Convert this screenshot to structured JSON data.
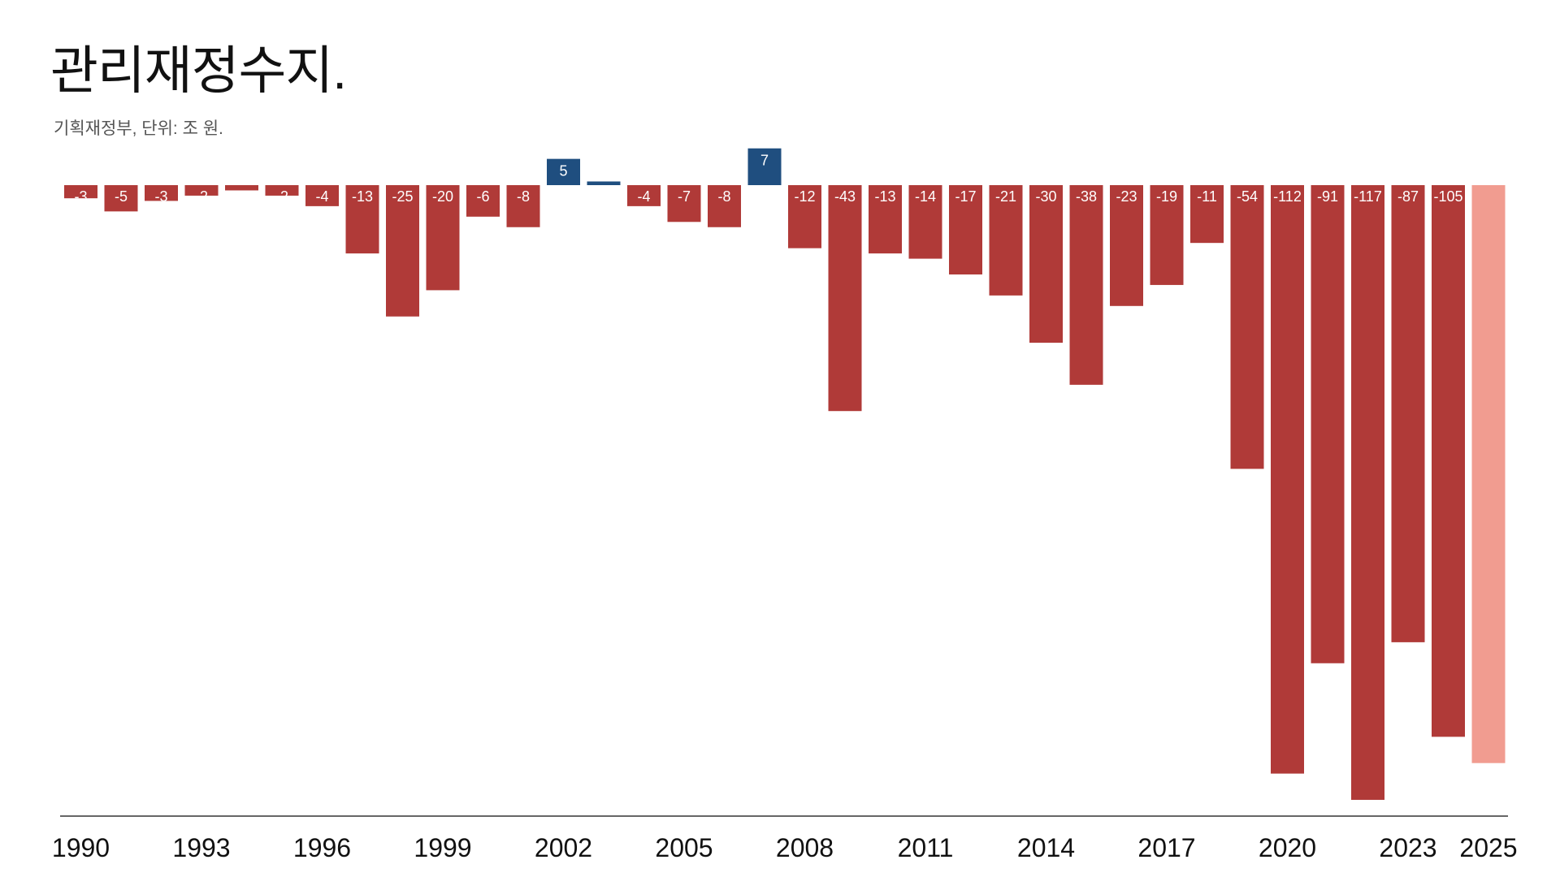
{
  "chart_data": {
    "type": "bar",
    "title": "관리재정수지.",
    "subtitle": "기획재정부, 단위: 조 원.",
    "xlabel": "",
    "ylabel": "",
    "ylim": [
      -120,
      10
    ],
    "grid": false,
    "categories": [
      1990,
      1991,
      1992,
      1993,
      1994,
      1995,
      1996,
      1997,
      1998,
      1999,
      2000,
      2001,
      2002,
      2003,
      2004,
      2005,
      2006,
      2007,
      2008,
      2009,
      2010,
      2011,
      2012,
      2013,
      2014,
      2015,
      2016,
      2017,
      2018,
      2019,
      2020,
      2021,
      2022,
      2023,
      2024,
      2025
    ],
    "values": [
      -2.5,
      -5,
      -3,
      -2,
      -1,
      -2,
      -4,
      -13,
      -25,
      -20,
      -6,
      -8,
      5,
      0.7,
      -4,
      -7,
      -8,
      7,
      -12,
      -43,
      -13,
      -14,
      -17,
      -21,
      -30,
      -38,
      -23,
      -19,
      -11,
      -54,
      -112,
      -91,
      -117,
      -87,
      -105,
      -110
    ],
    "data_labels": [
      "-3",
      "-5",
      "-3",
      "-2",
      "-1",
      "-2",
      "-4",
      "-13",
      "-25",
      "-20",
      "-6",
      "-8",
      "5",
      "",
      "-4",
      "-7",
      "-8",
      "7",
      "-12",
      "-43",
      "-13",
      "-14",
      "-17",
      "-21",
      "-30",
      "-38",
      "-23",
      "-19",
      "-11",
      "-54",
      "-112",
      "-91",
      "-117",
      "-87",
      "-105",
      ""
    ],
    "x_tick_labels": [
      "1990",
      "1993",
      "1996",
      "1999",
      "2002",
      "2005",
      "2008",
      "2011",
      "2014",
      "2017",
      "2020",
      "2023",
      "2025"
    ],
    "projected": [
      2025
    ],
    "colors": {
      "negative": "#b03a38",
      "positive": "#1f4e7f",
      "projected": "#f19c90",
      "axis": "#333333"
    }
  }
}
